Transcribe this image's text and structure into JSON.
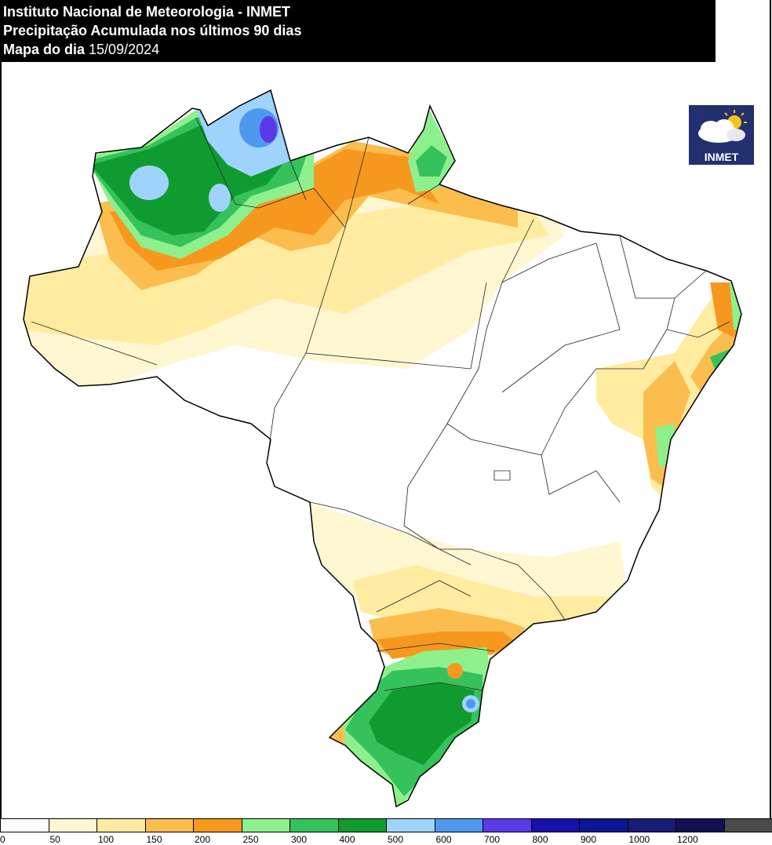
{
  "header": {
    "line1": "Instituto Nacional de Meteorologia - INMET",
    "line2": "Precipitação Acumulada nos últimos 90 dias",
    "line3_label": "Mapa do dia",
    "line3_date": "15/09/2024"
  },
  "logo": {
    "text": "INMET",
    "icon": "cloud-sun-icon"
  },
  "legend": {
    "swatches": [
      {
        "color": "#ffffff"
      },
      {
        "color": "#fff7d2"
      },
      {
        "color": "#ffeca1"
      },
      {
        "color": "#fbbd4e"
      },
      {
        "color": "#f7981e"
      },
      {
        "color": "#8ef08c"
      },
      {
        "color": "#35c25a"
      },
      {
        "color": "#0f9b30"
      },
      {
        "color": "#9fd3fb"
      },
      {
        "color": "#4e99ef"
      },
      {
        "color": "#5a39e8"
      },
      {
        "color": "#1810ab"
      },
      {
        "color": "#0a1694"
      },
      {
        "color": "#1a1b76"
      },
      {
        "color": "#141055"
      },
      {
        "color": "#4a4a4a"
      }
    ],
    "labels": [
      "0",
      "50",
      "100",
      "150",
      "200",
      "250",
      "300",
      "400",
      "500",
      "600",
      "700",
      "800",
      "900",
      "1000",
      "1200"
    ]
  }
}
